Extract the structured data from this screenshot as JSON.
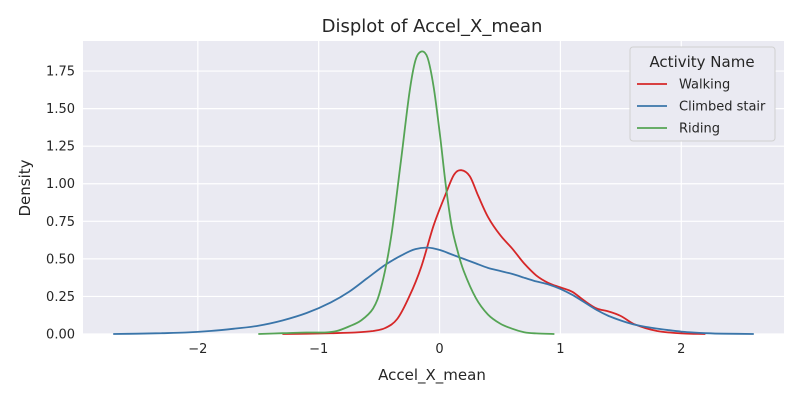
{
  "chart_data": {
    "type": "line",
    "title": "Displot of Accel_X_mean",
    "xlabel": "Accel_X_mean",
    "ylabel": "Density",
    "xlim": [
      -2.95,
      2.85
    ],
    "ylim": [
      0,
      1.95
    ],
    "xticks": [
      -2,
      -1,
      0,
      1,
      2
    ],
    "xtick_labels": [
      "−2",
      "−1",
      "0",
      "1",
      "2"
    ],
    "yticks": [
      0,
      0.25,
      0.5,
      0.75,
      1.0,
      1.25,
      1.5,
      1.75
    ],
    "ytick_labels": [
      "0.00",
      "0.25",
      "0.50",
      "0.75",
      "1.00",
      "1.25",
      "1.50",
      "1.75"
    ],
    "grid": true,
    "background": "#eaeaf2",
    "legend": {
      "title": "Activity Name",
      "placement": "top-right"
    },
    "series": [
      {
        "name": "Walking",
        "color": "#d62728",
        "points": [
          [
            -1.3,
            0.0
          ],
          [
            -1.1,
            0.002
          ],
          [
            -0.9,
            0.005
          ],
          [
            -0.7,
            0.01
          ],
          [
            -0.55,
            0.02
          ],
          [
            -0.45,
            0.04
          ],
          [
            -0.35,
            0.1
          ],
          [
            -0.25,
            0.25
          ],
          [
            -0.15,
            0.45
          ],
          [
            -0.05,
            0.72
          ],
          [
            0.05,
            0.93
          ],
          [
            0.12,
            1.06
          ],
          [
            0.18,
            1.09
          ],
          [
            0.25,
            1.05
          ],
          [
            0.32,
            0.92
          ],
          [
            0.4,
            0.78
          ],
          [
            0.5,
            0.66
          ],
          [
            0.6,
            0.57
          ],
          [
            0.7,
            0.47
          ],
          [
            0.8,
            0.39
          ],
          [
            0.9,
            0.34
          ],
          [
            1.0,
            0.31
          ],
          [
            1.1,
            0.28
          ],
          [
            1.2,
            0.22
          ],
          [
            1.3,
            0.17
          ],
          [
            1.4,
            0.15
          ],
          [
            1.5,
            0.12
          ],
          [
            1.6,
            0.07
          ],
          [
            1.7,
            0.04
          ],
          [
            1.8,
            0.02
          ],
          [
            1.9,
            0.01
          ],
          [
            2.0,
            0.004
          ],
          [
            2.1,
            0.001
          ],
          [
            2.2,
            0.0
          ]
        ]
      },
      {
        "name": "Climbed stair",
        "color": "#3a75a9",
        "points": [
          [
            -2.7,
            0.0
          ],
          [
            -2.5,
            0.002
          ],
          [
            -2.3,
            0.005
          ],
          [
            -2.1,
            0.01
          ],
          [
            -1.9,
            0.02
          ],
          [
            -1.7,
            0.035
          ],
          [
            -1.5,
            0.055
          ],
          [
            -1.3,
            0.09
          ],
          [
            -1.1,
            0.14
          ],
          [
            -0.9,
            0.21
          ],
          [
            -0.75,
            0.28
          ],
          [
            -0.6,
            0.37
          ],
          [
            -0.45,
            0.46
          ],
          [
            -0.3,
            0.53
          ],
          [
            -0.2,
            0.565
          ],
          [
            -0.1,
            0.575
          ],
          [
            0.0,
            0.56
          ],
          [
            0.1,
            0.53
          ],
          [
            0.2,
            0.5
          ],
          [
            0.3,
            0.47
          ],
          [
            0.4,
            0.44
          ],
          [
            0.5,
            0.42
          ],
          [
            0.6,
            0.4
          ],
          [
            0.7,
            0.375
          ],
          [
            0.8,
            0.35
          ],
          [
            0.9,
            0.33
          ],
          [
            1.0,
            0.3
          ],
          [
            1.1,
            0.26
          ],
          [
            1.2,
            0.21
          ],
          [
            1.3,
            0.16
          ],
          [
            1.4,
            0.12
          ],
          [
            1.5,
            0.09
          ],
          [
            1.6,
            0.065
          ],
          [
            1.7,
            0.048
          ],
          [
            1.8,
            0.036
          ],
          [
            1.9,
            0.025
          ],
          [
            2.0,
            0.016
          ],
          [
            2.1,
            0.01
          ],
          [
            2.2,
            0.005
          ],
          [
            2.35,
            0.002
          ],
          [
            2.6,
            0.0
          ]
        ]
      },
      {
        "name": "Riding",
        "color": "#55a455",
        "points": [
          [
            -1.5,
            0.0
          ],
          [
            -1.3,
            0.005
          ],
          [
            -1.1,
            0.01
          ],
          [
            -0.95,
            0.01
          ],
          [
            -0.85,
            0.02
          ],
          [
            -0.75,
            0.05
          ],
          [
            -0.65,
            0.09
          ],
          [
            -0.55,
            0.17
          ],
          [
            -0.48,
            0.32
          ],
          [
            -0.4,
            0.65
          ],
          [
            -0.32,
            1.15
          ],
          [
            -0.25,
            1.6
          ],
          [
            -0.2,
            1.82
          ],
          [
            -0.15,
            1.88
          ],
          [
            -0.1,
            1.84
          ],
          [
            -0.05,
            1.65
          ],
          [
            0.0,
            1.35
          ],
          [
            0.05,
            1.0
          ],
          [
            0.1,
            0.72
          ],
          [
            0.15,
            0.55
          ],
          [
            0.2,
            0.42
          ],
          [
            0.3,
            0.24
          ],
          [
            0.4,
            0.13
          ],
          [
            0.5,
            0.07
          ],
          [
            0.6,
            0.035
          ],
          [
            0.7,
            0.012
          ],
          [
            0.8,
            0.004
          ],
          [
            0.95,
            0.0
          ]
        ]
      }
    ]
  }
}
